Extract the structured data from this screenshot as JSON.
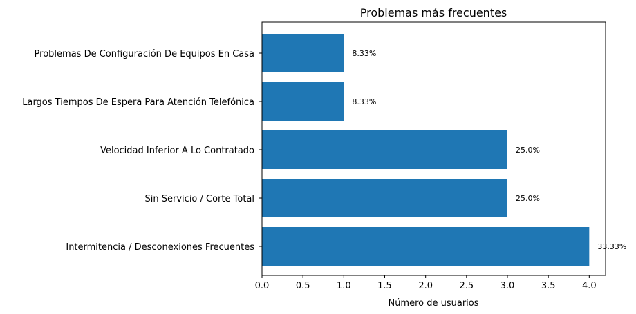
{
  "chart_data": {
    "type": "bar",
    "orientation": "horizontal",
    "title": "Problemas más frecuentes",
    "xlabel": "Número de usuarios",
    "ylabel": "",
    "xlim": [
      0,
      4.2
    ],
    "x_ticks": [
      "0.0",
      "0.5",
      "1.0",
      "1.5",
      "2.0",
      "2.5",
      "3.0",
      "3.5",
      "4.0"
    ],
    "grid": false,
    "bar_color": "#1f77b4",
    "categories": [
      "Intermitencia / Desconexiones Frecuentes",
      "Sin Servicio / Corte Total",
      "Velocidad Inferior A Lo Contratado",
      "Largos Tiempos De Espera Para Atención Telefónica",
      "Problemas De Configuración De Equipos En Casa"
    ],
    "values": [
      4,
      3,
      3,
      1,
      1
    ],
    "data_labels": [
      "33.33%",
      "25.0%",
      "25.0%",
      "8.33%",
      "8.33%"
    ]
  }
}
